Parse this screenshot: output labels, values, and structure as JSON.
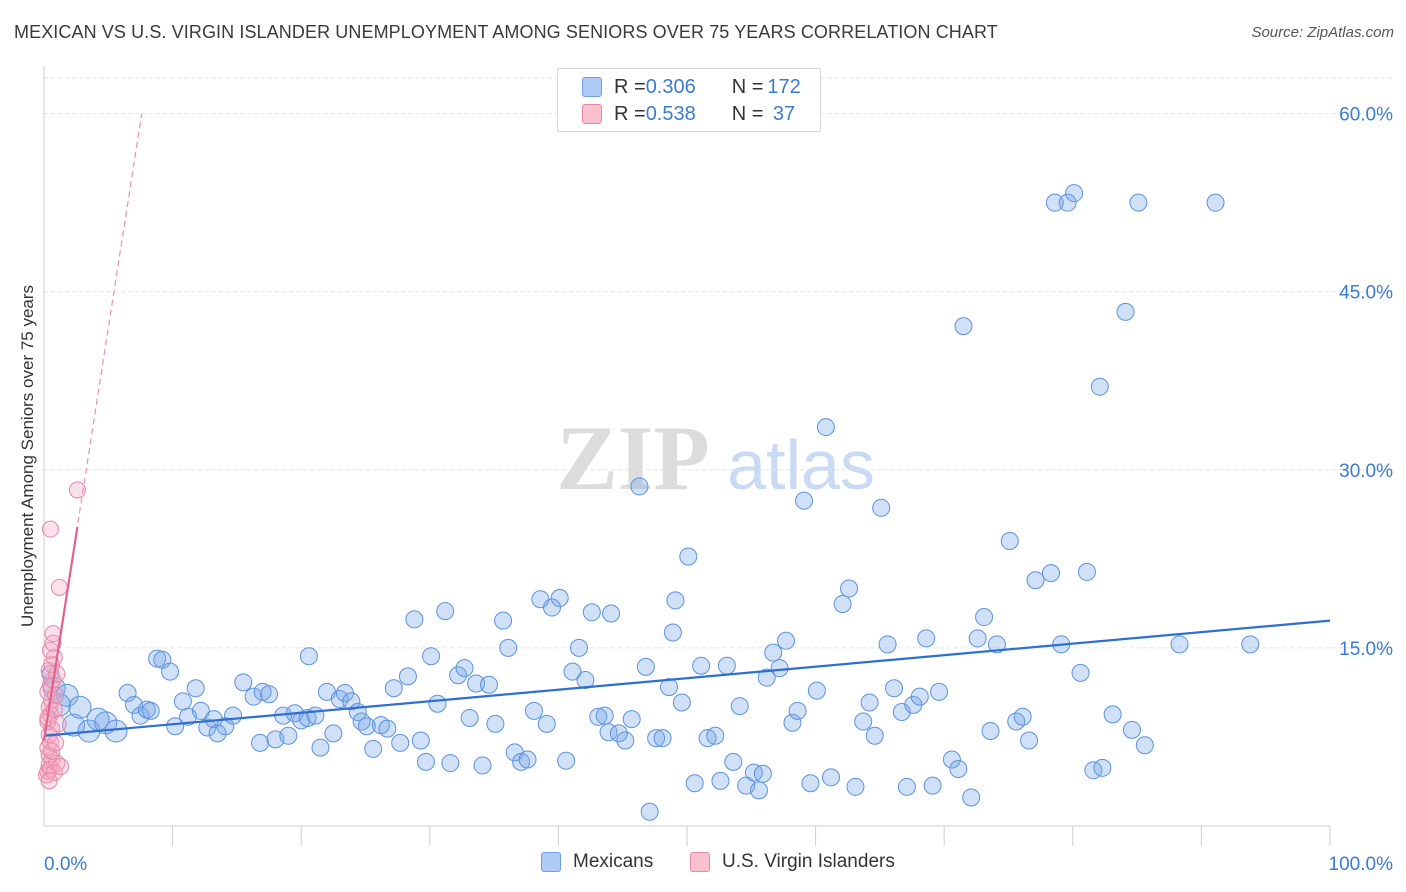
{
  "title": "MEXICAN VS U.S. VIRGIN ISLANDER UNEMPLOYMENT AMONG SENIORS OVER 75 YEARS CORRELATION CHART",
  "source": "Source: ZipAtlas.com",
  "watermark": {
    "zip": "ZIP",
    "atlas": "atlas"
  },
  "legend_top": [
    {
      "r_label": "R = ",
      "r_value": "0.306",
      "n_label": "N = ",
      "n_value": "172",
      "fill": "#aecbf5",
      "stroke": "#6f9fe0"
    },
    {
      "r_label": "R = ",
      "r_value": "0.538",
      "n_label": "N = ",
      "n_value": " 37",
      "fill": "#f9c0d0",
      "stroke": "#e887a5"
    }
  ],
  "legend_bottom": [
    {
      "label": "Mexicans",
      "fill": "#aecbf5",
      "stroke": "#6f9fe0"
    },
    {
      "label": "U.S. Virgin Islanders",
      "fill": "#f9c0d0",
      "stroke": "#e887a5"
    }
  ],
  "chart_data": {
    "type": "scatter",
    "title": "MEXICAN VS U.S. VIRGIN ISLANDER UNEMPLOYMENT AMONG SENIORS OVER 75 YEARS CORRELATION CHART",
    "xlabel": "",
    "ylabel": "Unemployment Among Seniors over 75 years",
    "xlim": [
      0,
      100
    ],
    "ylim": [
      0,
      63
    ],
    "x_tick_labels": [
      "0.0%",
      "100.0%"
    ],
    "y_ticks": [
      15,
      30,
      45,
      60
    ],
    "y_tick_labels": [
      "15.0%",
      "30.0%",
      "45.0%",
      "60.0%"
    ],
    "x_minor_ticks": [
      10,
      20,
      30,
      40,
      50,
      60,
      70,
      80,
      90,
      100
    ],
    "colors": {
      "blue": "#5b93e0",
      "blue_fill": "rgba(120,165,232,0.35)",
      "blue_line": "#2d6fd2",
      "pink": "#e886a5",
      "pink_fill": "rgba(247,170,195,0.35)",
      "pink_line": "#e2628e",
      "grid": "#e3e3e3",
      "tick_label": "#3a7bd5"
    },
    "series": [
      {
        "name": "Mexicans",
        "trend": {
          "x": [
            0,
            100
          ],
          "y": [
            7.6,
            17.3
          ]
        },
        "points": [
          [
            0.5,
            12.8
          ],
          [
            0.8,
            11.6
          ],
          [
            1.2,
            10.2
          ],
          [
            1.8,
            11.0
          ],
          [
            2.3,
            8.5
          ],
          [
            2.8,
            10.0
          ],
          [
            3.5,
            8.0
          ],
          [
            4.2,
            9.0
          ],
          [
            4.8,
            8.7
          ],
          [
            5.6,
            8.0
          ],
          [
            6.5,
            11.2
          ],
          [
            7.0,
            10.2
          ],
          [
            7.5,
            9.3
          ],
          [
            8.0,
            9.8
          ],
          [
            8.3,
            9.7
          ],
          [
            8.8,
            14.1
          ],
          [
            9.2,
            14.0
          ],
          [
            9.8,
            13.0
          ],
          [
            10.2,
            8.4
          ],
          [
            10.8,
            10.5
          ],
          [
            11.2,
            9.2
          ],
          [
            11.8,
            11.6
          ],
          [
            12.2,
            9.7
          ],
          [
            12.7,
            8.3
          ],
          [
            13.2,
            9.0
          ],
          [
            13.5,
            7.8
          ],
          [
            14.1,
            8.4
          ],
          [
            14.7,
            9.3
          ],
          [
            15.5,
            12.1
          ],
          [
            16.3,
            10.9
          ],
          [
            16.8,
            7.0
          ],
          [
            17.0,
            11.3
          ],
          [
            17.5,
            11.1
          ],
          [
            18.0,
            7.3
          ],
          [
            18.6,
            9.3
          ],
          [
            19.0,
            7.6
          ],
          [
            19.5,
            9.5
          ],
          [
            20.0,
            8.9
          ],
          [
            20.5,
            9.1
          ],
          [
            20.6,
            14.3
          ],
          [
            21.1,
            9.3
          ],
          [
            21.5,
            6.6
          ],
          [
            22.0,
            11.3
          ],
          [
            22.5,
            7.8
          ],
          [
            23.0,
            10.7
          ],
          [
            23.4,
            11.2
          ],
          [
            23.9,
            10.5
          ],
          [
            24.4,
            9.6
          ],
          [
            24.7,
            8.8
          ],
          [
            25.1,
            8.4
          ],
          [
            25.6,
            6.5
          ],
          [
            26.2,
            8.5
          ],
          [
            26.7,
            8.2
          ],
          [
            27.2,
            11.6
          ],
          [
            27.7,
            7.0
          ],
          [
            28.3,
            12.6
          ],
          [
            28.8,
            17.4
          ],
          [
            29.3,
            7.2
          ],
          [
            29.7,
            5.4
          ],
          [
            30.1,
            14.3
          ],
          [
            30.6,
            10.3
          ],
          [
            31.2,
            18.1
          ],
          [
            31.6,
            5.3
          ],
          [
            32.2,
            12.7
          ],
          [
            32.7,
            13.3
          ],
          [
            33.1,
            9.1
          ],
          [
            33.6,
            12.0
          ],
          [
            34.1,
            5.1
          ],
          [
            34.6,
            11.9
          ],
          [
            35.1,
            8.6
          ],
          [
            35.7,
            17.3
          ],
          [
            36.1,
            15.0
          ],
          [
            36.6,
            6.2
          ],
          [
            37.1,
            5.4
          ],
          [
            37.6,
            5.6
          ],
          [
            38.1,
            9.7
          ],
          [
            38.6,
            19.1
          ],
          [
            39.1,
            8.6
          ],
          [
            39.5,
            18.4
          ],
          [
            40.1,
            19.2
          ],
          [
            40.6,
            5.5
          ],
          [
            41.1,
            13.0
          ],
          [
            41.6,
            15.0
          ],
          [
            42.1,
            12.3
          ],
          [
            42.6,
            18.0
          ],
          [
            43.1,
            9.2
          ],
          [
            43.6,
            9.3
          ],
          [
            43.9,
            7.9
          ],
          [
            44.1,
            17.9
          ],
          [
            44.7,
            7.8
          ],
          [
            45.2,
            7.2
          ],
          [
            45.7,
            9.0
          ],
          [
            46.3,
            28.6
          ],
          [
            46.8,
            13.4
          ],
          [
            47.1,
            1.2
          ],
          [
            47.6,
            7.4
          ],
          [
            48.1,
            7.4
          ],
          [
            48.6,
            11.7
          ],
          [
            48.9,
            16.3
          ],
          [
            49.1,
            19.0
          ],
          [
            49.6,
            10.4
          ],
          [
            50.1,
            22.7
          ],
          [
            50.6,
            3.6
          ],
          [
            51.1,
            13.5
          ],
          [
            51.6,
            7.4
          ],
          [
            52.2,
            7.6
          ],
          [
            52.6,
            3.8
          ],
          [
            53.1,
            13.5
          ],
          [
            53.6,
            5.4
          ],
          [
            54.1,
            10.1
          ],
          [
            54.6,
            3.4
          ],
          [
            55.2,
            4.5
          ],
          [
            55.6,
            3.0
          ],
          [
            55.9,
            4.4
          ],
          [
            56.2,
            12.5
          ],
          [
            56.7,
            14.6
          ],
          [
            57.2,
            13.3
          ],
          [
            57.7,
            15.6
          ],
          [
            58.2,
            8.7
          ],
          [
            58.6,
            9.7
          ],
          [
            59.1,
            27.4
          ],
          [
            59.6,
            3.6
          ],
          [
            60.1,
            11.4
          ],
          [
            60.8,
            33.6
          ],
          [
            61.2,
            4.1
          ],
          [
            62.1,
            18.7
          ],
          [
            62.6,
            20.0
          ],
          [
            63.1,
            3.3
          ],
          [
            63.7,
            8.8
          ],
          [
            64.2,
            10.4
          ],
          [
            64.6,
            7.6
          ],
          [
            65.1,
            26.8
          ],
          [
            65.6,
            15.3
          ],
          [
            66.1,
            11.6
          ],
          [
            66.7,
            9.6
          ],
          [
            67.1,
            3.3
          ],
          [
            67.6,
            10.2
          ],
          [
            68.1,
            10.9
          ],
          [
            68.6,
            15.8
          ],
          [
            69.1,
            3.4
          ],
          [
            69.6,
            11.3
          ],
          [
            70.6,
            5.6
          ],
          [
            71.1,
            4.8
          ],
          [
            71.5,
            42.1
          ],
          [
            72.1,
            2.4
          ],
          [
            72.6,
            15.8
          ],
          [
            73.1,
            17.6
          ],
          [
            73.6,
            8.0
          ],
          [
            74.1,
            15.3
          ],
          [
            75.1,
            24.0
          ],
          [
            75.6,
            8.8
          ],
          [
            76.1,
            9.2
          ],
          [
            76.6,
            7.2
          ],
          [
            77.1,
            20.7
          ],
          [
            78.3,
            21.3
          ],
          [
            78.6,
            52.5
          ],
          [
            79.1,
            15.3
          ],
          [
            79.6,
            52.5
          ],
          [
            80.1,
            53.3
          ],
          [
            80.6,
            12.9
          ],
          [
            81.1,
            21.4
          ],
          [
            81.6,
            4.7
          ],
          [
            82.1,
            37.0
          ],
          [
            82.3,
            4.9
          ],
          [
            83.1,
            9.4
          ],
          [
            84.1,
            43.3
          ],
          [
            84.6,
            8.1
          ],
          [
            85.1,
            52.5
          ],
          [
            85.6,
            6.8
          ],
          [
            88.3,
            15.3
          ],
          [
            91.1,
            52.5
          ],
          [
            93.8,
            15.3
          ]
        ]
      },
      {
        "name": "U.S. Virgin Islanders",
        "trend": {
          "x": [
            0,
            2.6
          ],
          "y": [
            7.2,
            25.2
          ]
        },
        "trend_extension": {
          "x": [
            0,
            7.6
          ],
          "y": [
            7.2,
            60.0
          ]
        },
        "points": [
          [
            0.2,
            4.3
          ],
          [
            0.3,
            4.6
          ],
          [
            0.4,
            5.1
          ],
          [
            0.5,
            4.8
          ],
          [
            0.4,
            6.0
          ],
          [
            0.6,
            5.6
          ],
          [
            0.3,
            6.6
          ],
          [
            0.5,
            7.1
          ],
          [
            0.4,
            7.7
          ],
          [
            0.6,
            8.2
          ],
          [
            0.3,
            8.8
          ],
          [
            0.5,
            9.4
          ],
          [
            0.4,
            10.0
          ],
          [
            0.6,
            10.6
          ],
          [
            0.3,
            11.3
          ],
          [
            0.5,
            11.9
          ],
          [
            0.7,
            12.3
          ],
          [
            0.4,
            13.1
          ],
          [
            0.6,
            13.6
          ],
          [
            0.8,
            14.2
          ],
          [
            0.5,
            14.8
          ],
          [
            0.7,
            15.4
          ],
          [
            0.3,
            9.1
          ],
          [
            0.8,
            9.8
          ],
          [
            0.9,
            11.0
          ],
          [
            1.0,
            5.3
          ],
          [
            0.8,
            4.5
          ],
          [
            0.6,
            6.3
          ],
          [
            0.9,
            7.0
          ],
          [
            1.1,
            8.6
          ],
          [
            0.7,
            16.2
          ],
          [
            1.2,
            20.1
          ],
          [
            0.5,
            25.0
          ],
          [
            2.6,
            28.3
          ],
          [
            0.4,
            3.8
          ],
          [
            1.3,
            5.0
          ],
          [
            1.0,
            12.8
          ]
        ]
      }
    ]
  }
}
